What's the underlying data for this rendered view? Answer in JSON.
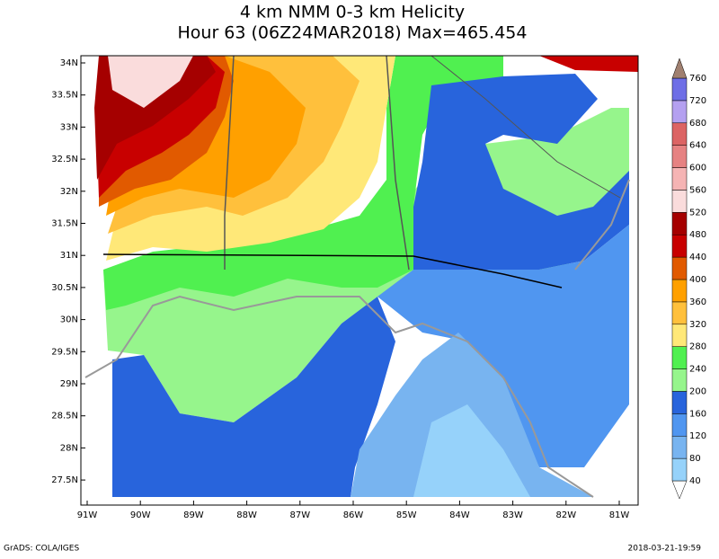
{
  "title": {
    "line1": "4 km NMM 0-3 km Helicity",
    "line2": "Hour 63 (06Z24MAR2018) Max=465.454"
  },
  "map": {
    "lat_labels": [
      "34N",
      "33.5N",
      "33N",
      "32.5N",
      "32N",
      "31.5N",
      "31N",
      "30.5N",
      "30N",
      "29.5N",
      "29N",
      "28.5N",
      "28N",
      "27.5N"
    ],
    "lon_labels": [
      "91W",
      "90W",
      "89W",
      "88W",
      "87W",
      "86W",
      "85W",
      "84W",
      "83W",
      "82W",
      "81W"
    ]
  },
  "colorbar": {
    "levels": [
      40,
      80,
      120,
      160,
      200,
      240,
      280,
      320,
      360,
      400,
      440,
      480,
      520,
      560,
      600,
      640,
      680,
      720,
      760
    ],
    "colors": [
      "#ffffff",
      "#96d2fa",
      "#78b4f0",
      "#5096f0",
      "#2864dc",
      "#96f58c",
      "#50f050",
      "#ffe878",
      "#ffc03c",
      "#ffa000",
      "#e15a00",
      "#c80000",
      "#a50000",
      "#fadcdc",
      "#f5b4b4",
      "#e68282",
      "#dc6464",
      "#b4a0f0",
      "#6e6ee6",
      "#a08070"
    ]
  },
  "footer": {
    "left": "GrADS: COLA/IGES",
    "right": "2018-03-21-19:59"
  }
}
